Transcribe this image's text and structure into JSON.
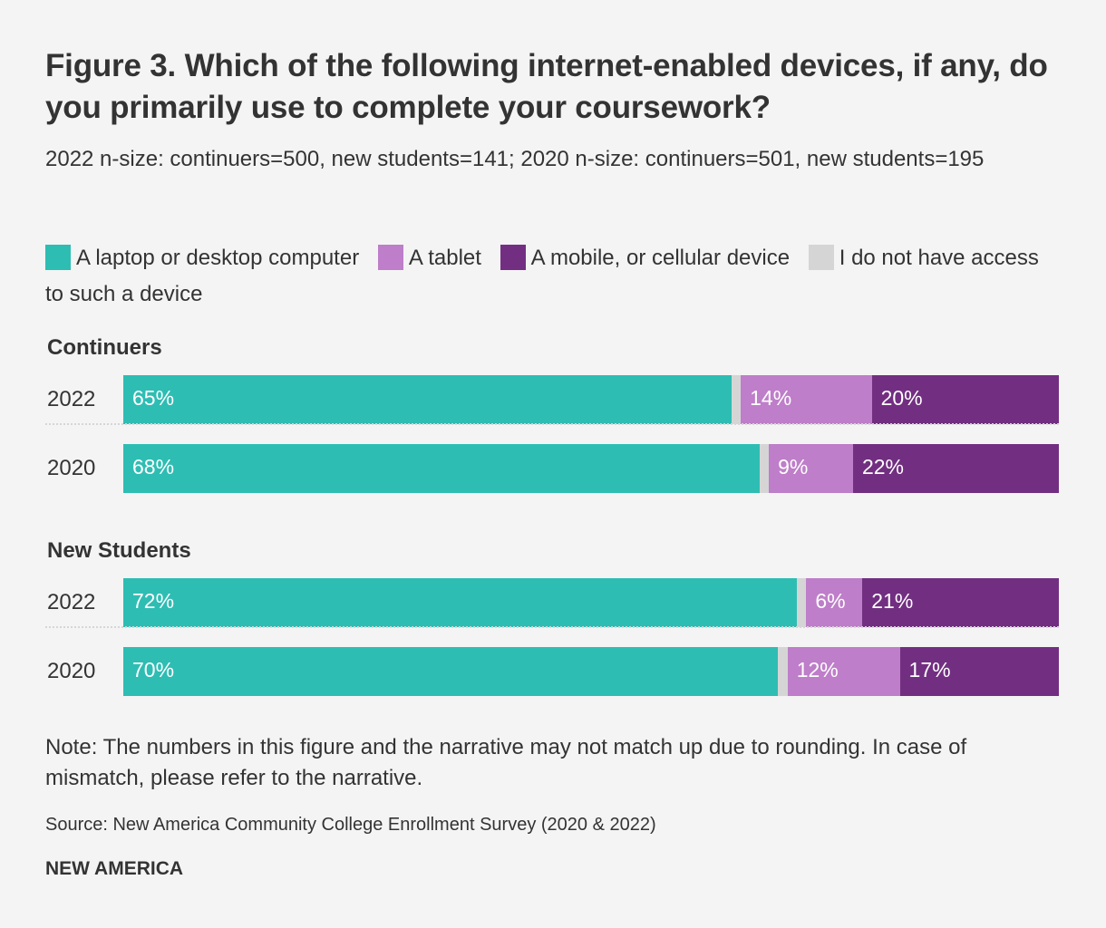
{
  "title": "Figure 3. Which of the following internet-enabled devices, if any, do you primarily use to complete your coursework?",
  "subtitle": "2022 n-size: continuers=500, new students=141; 2020 n-size: continuers=501, new students=195",
  "note": "Note: The numbers in this figure and the narrative may not match up due to rounding. In case of mismatch, please refer to the narrative.",
  "source": "Source: New America Community College Enrollment Survey (2020 & 2022)",
  "brand": "NEW AMERICA",
  "chart_data": {
    "type": "bar",
    "orientation": "horizontal",
    "stacked": true,
    "normalized": true,
    "title": "Figure 3. Which of the following internet-enabled devices, if any, do you primarily use to complete your coursework?",
    "legend_position": "top",
    "legend": [
      {
        "name": "A laptop or desktop computer",
        "color": "#2ebdb3"
      },
      {
        "name": "A tablet",
        "color": "#be7ec9"
      },
      {
        "name": "A mobile, or cellular device",
        "color": "#722f81"
      },
      {
        "name": "I do not have access to such a device",
        "color": "#d5d5d5"
      }
    ],
    "segment_order": [
      0,
      3,
      1,
      2
    ],
    "groups": [
      {
        "name": "Continuers",
        "rows": [
          {
            "label": "2022",
            "values": [
              65,
              14,
              20,
              1
            ],
            "labels": [
              "65%",
              "14%",
              "20%",
              ""
            ]
          },
          {
            "label": "2020",
            "values": [
              68,
              9,
              22,
              1
            ],
            "labels": [
              "68%",
              "9%",
              "22%",
              ""
            ]
          }
        ]
      },
      {
        "name": "New Students",
        "rows": [
          {
            "label": "2022",
            "values": [
              72,
              6,
              21,
              1
            ],
            "labels": [
              "72%",
              "6%",
              "21%",
              ""
            ]
          },
          {
            "label": "2020",
            "values": [
              70,
              12,
              17,
              1
            ],
            "labels": [
              "70%",
              "12%",
              "17%",
              ""
            ]
          }
        ]
      }
    ],
    "xlim": [
      0,
      100
    ],
    "unit": "%",
    "grid": false
  }
}
